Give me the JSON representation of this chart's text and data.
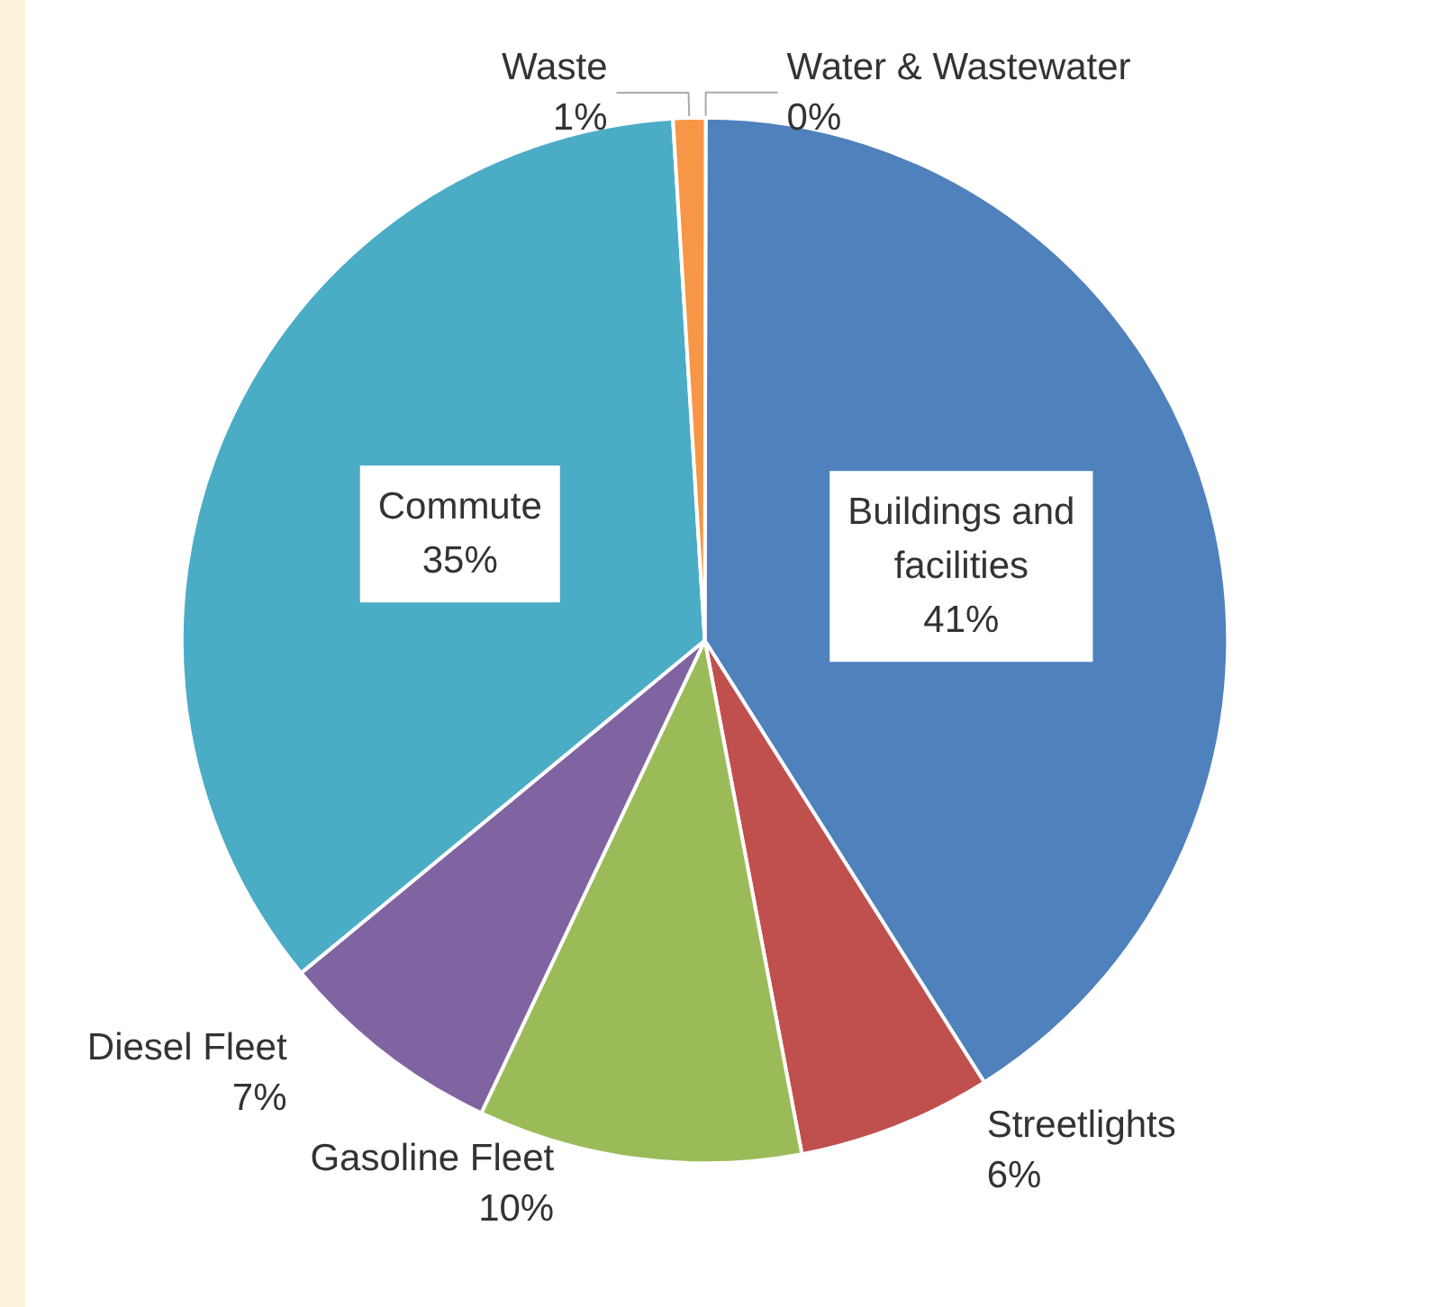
{
  "chart_data": {
    "type": "pie",
    "categories": [
      "Buildings and facilities",
      "Streetlights",
      "Gasoline Fleet",
      "Diesel Fleet",
      "Commute",
      "Waste",
      "Water & Wastewater"
    ],
    "values": [
      41,
      6,
      10,
      7,
      35,
      1,
      0
    ],
    "value_labels": [
      "41%",
      "6%",
      "10%",
      "7%",
      "35%",
      "1%",
      "0%"
    ],
    "colors": [
      "#4f81bd",
      "#c0504d",
      "#9bbb59",
      "#8064a2",
      "#4bacc6",
      "#f79646",
      "#2c4d75"
    ],
    "legend": false
  }
}
